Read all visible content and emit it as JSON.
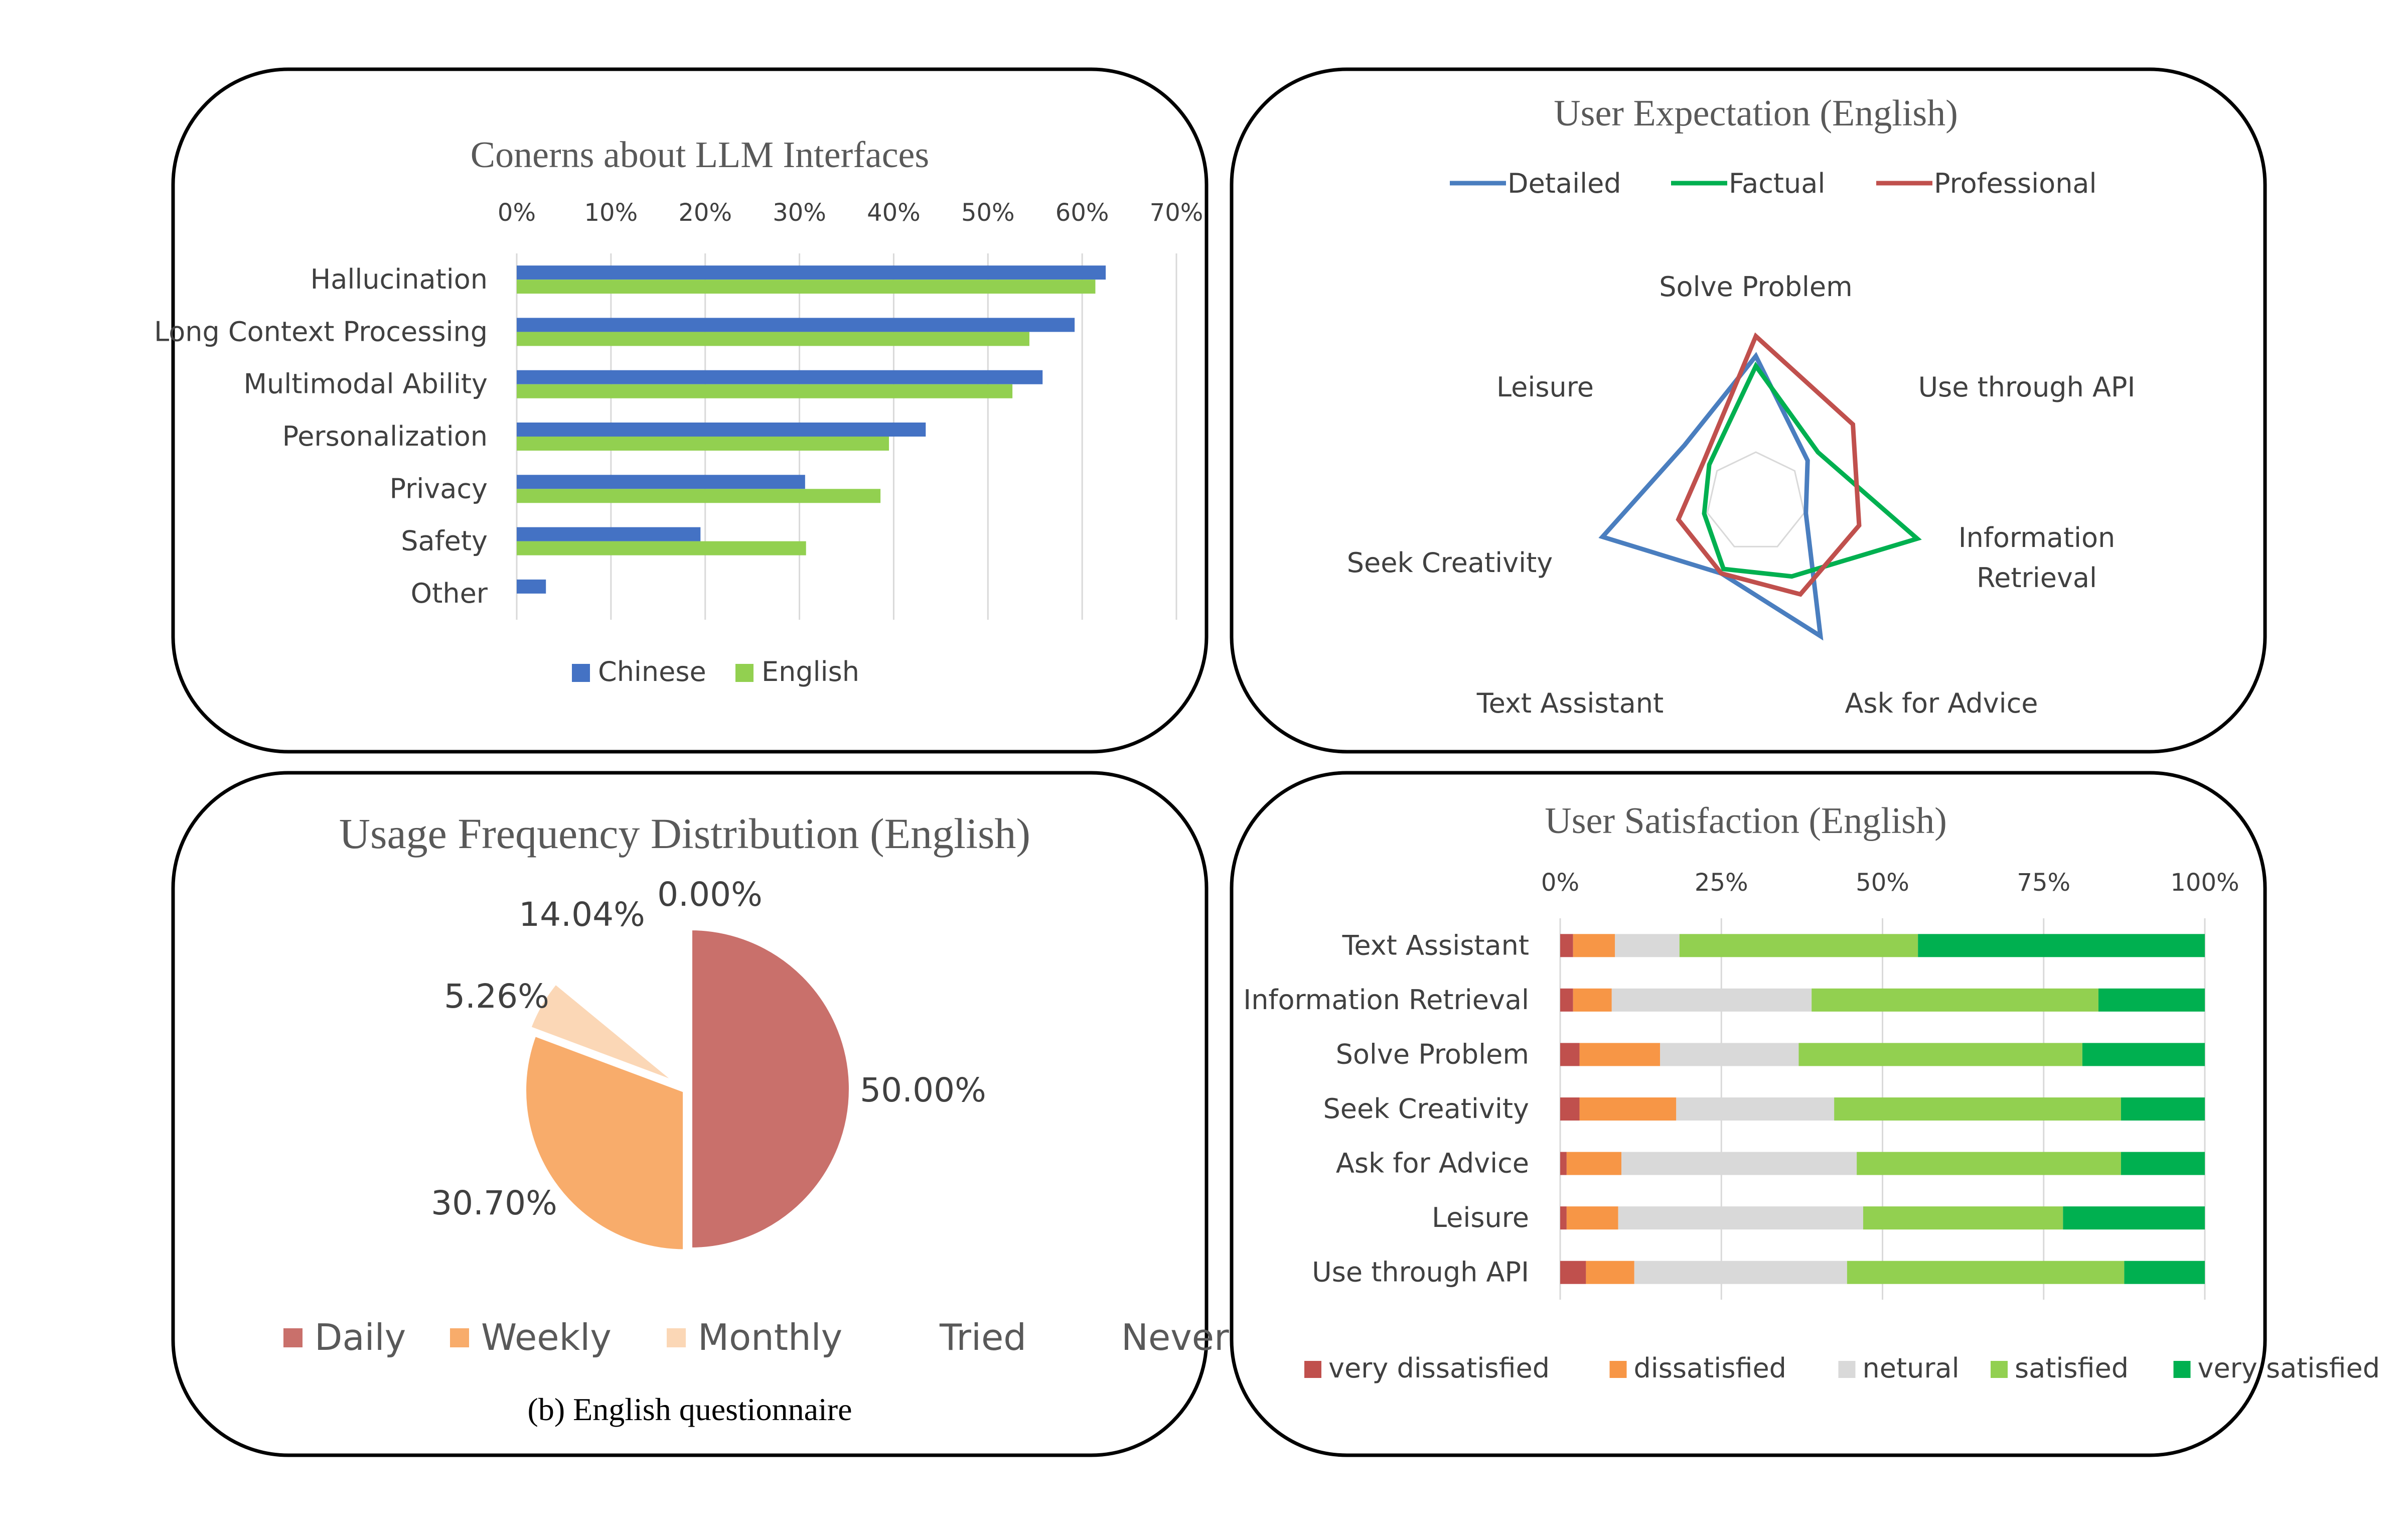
{
  "caption": "(b)  English questionnaire",
  "chart_data": [
    {
      "type": "bar",
      "orientation": "horizontal",
      "title": "Conerns about LLM Interfaces",
      "categories": [
        "Hallucination",
        "Long Context Processing",
        "Multimodal Ability",
        "Personalization",
        "Privacy",
        "Safety",
        "Other"
      ],
      "x_ticks": [
        "0%",
        "10%",
        "20%",
        "30%",
        "40%",
        "50%",
        "60%",
        "70%"
      ],
      "xlim": [
        0,
        70
      ],
      "axis_position": "top",
      "grid": true,
      "legend_position": "bottom",
      "series": [
        {
          "name": "Chinese",
          "color": "#4472c4",
          "values": [
            62.5,
            59.2,
            55.8,
            43.4,
            30.6,
            19.5,
            3.1
          ]
        },
        {
          "name": "English",
          "color": "#92d050",
          "values": [
            61.4,
            54.4,
            52.6,
            39.5,
            38.6,
            30.7,
            0
          ]
        }
      ]
    },
    {
      "type": "radar",
      "title": "User Expectation (English)",
      "axes": [
        "Solve Problem",
        "Use through API",
        "Information Retrieval",
        "Ask for Advice",
        "Text Assistant",
        "Seek Creativity",
        "Leisure"
      ],
      "axis_label_lines": [
        [
          "Solve Problem"
        ],
        [
          "Use through API"
        ],
        [
          "Information",
          "Retrieval"
        ],
        [
          "Ask for Advice"
        ],
        [
          "Text Assistant"
        ],
        [
          "Seek Creativity"
        ],
        [
          "Leisure"
        ]
      ],
      "rmax": 1.0,
      "legend_position": "top",
      "series": [
        {
          "name": "Detailed",
          "color": "#4a7ebf",
          "values": [
            0.88,
            0.4,
            0.31,
            0.9,
            0.48,
            0.95,
            0.55
          ]
        },
        {
          "name": "Factual",
          "color": "#00b050",
          "values": [
            0.82,
            0.48,
            1.0,
            0.5,
            0.45,
            0.32,
            0.36
          ]
        },
        {
          "name": "Professional",
          "color": "#c0504d",
          "values": [
            1.0,
            0.75,
            0.64,
            0.62,
            0.48,
            0.48,
            0.4
          ]
        }
      ]
    },
    {
      "type": "pie",
      "title": "Usage Frequency Distribution (English)",
      "legend_position": "bottom",
      "slices": [
        {
          "label": "Daily",
          "value": 50.0,
          "display": "50.00%",
          "color": "#c9706b"
        },
        {
          "label": "Weekly",
          "value": 30.7,
          "display": "30.70%",
          "color": "#f8ac6b"
        },
        {
          "label": "Monthly",
          "value": 5.26,
          "display": "5.26%",
          "color": "#fbd7b6"
        },
        {
          "label": "Tried",
          "value": 14.04,
          "display": "14.04%",
          "color": "#ffffff"
        },
        {
          "label": "Never",
          "value": 0.0,
          "display": "0.00%",
          "color": "#ffffff"
        }
      ]
    },
    {
      "type": "bar",
      "orientation": "horizontal",
      "stacked": "percent",
      "title": "User Satisfaction (English)",
      "categories": [
        "Text Assistant",
        "Information Retrieval",
        "Solve Problem",
        "Seek Creativity",
        "Ask for Advice",
        "Leisure",
        "Use through API"
      ],
      "x_ticks": [
        "0%",
        "25%",
        "50%",
        "75%",
        "100%"
      ],
      "xlim": [
        0,
        100
      ],
      "axis_position": "top",
      "grid": true,
      "legend_position": "bottom",
      "series": [
        {
          "name": "very dissatisfied",
          "color": "#c0504d",
          "values": [
            2,
            2,
            3,
            3,
            1,
            1,
            4
          ]
        },
        {
          "name": "dissatisfied",
          "color": "#f79646",
          "values": [
            6.5,
            6,
            12.5,
            15,
            8.5,
            8,
            7.5
          ]
        },
        {
          "name": "netural",
          "color": "#d9d9d9",
          "values": [
            10,
            31,
            21.5,
            24.5,
            36.5,
            38,
            33
          ]
        },
        {
          "name": "satisfied",
          "color": "#92d050",
          "values": [
            37,
            44.5,
            44,
            44.5,
            41,
            31,
            43
          ]
        },
        {
          "name": "very satisfied",
          "color": "#00b050",
          "values": [
            44.5,
            16.5,
            19,
            13,
            13,
            22,
            12.5
          ]
        }
      ]
    }
  ]
}
